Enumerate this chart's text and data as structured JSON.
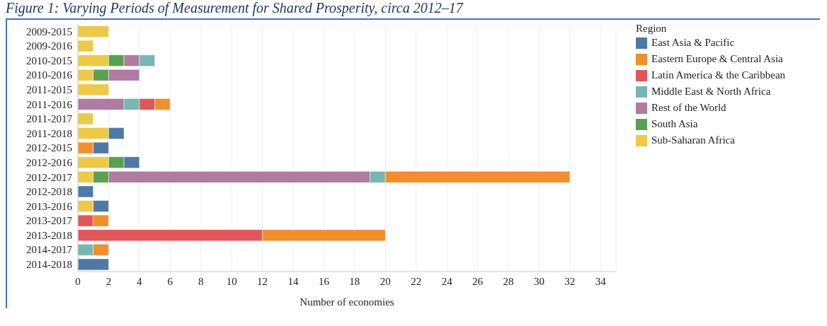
{
  "chart_data": {
    "type": "bar",
    "orientation": "horizontal",
    "stacked": true,
    "title": "Figure 1: Varying Periods of Measurement for Shared Prosperity, circa 2012–17",
    "xlabel": "Number of economies",
    "legend_title": "Region",
    "legend": "right",
    "grid": "x",
    "categories": [
      "2009-2015",
      "2009-2016",
      "2010-2015",
      "2010-2016",
      "2011-2015",
      "2011-2016",
      "2011-2017",
      "2011-2018",
      "2012-2015",
      "2012-2016",
      "2012-2017",
      "2012-2018",
      "2013-2016",
      "2013-2017",
      "2013-2018",
      "2014-2017",
      "2014-2018"
    ],
    "xlim": [
      0,
      35
    ],
    "xticks": [
      0,
      2,
      4,
      6,
      8,
      10,
      12,
      14,
      16,
      18,
      20,
      22,
      24,
      26,
      28,
      30,
      32,
      34
    ],
    "series": [
      {
        "name": "Sub-Saharan Africa",
        "color": "#edc948",
        "values": [
          2,
          1,
          2,
          1,
          2,
          null,
          1,
          2,
          null,
          2,
          1,
          null,
          1,
          null,
          null,
          null,
          null
        ]
      },
      {
        "name": "South Asia",
        "color": "#59a14f",
        "values": [
          null,
          null,
          1,
          1,
          null,
          null,
          null,
          null,
          null,
          1,
          1,
          null,
          null,
          null,
          null,
          null,
          null
        ]
      },
      {
        "name": "Rest of the World",
        "color": "#b07aa1",
        "values": [
          null,
          null,
          1,
          2,
          null,
          3,
          null,
          null,
          null,
          null,
          17,
          null,
          null,
          null,
          null,
          null,
          null
        ]
      },
      {
        "name": "Middle East & North Africa",
        "color": "#76b7b2",
        "values": [
          null,
          null,
          1,
          null,
          null,
          1,
          null,
          null,
          null,
          null,
          1,
          null,
          null,
          null,
          null,
          1,
          null
        ]
      },
      {
        "name": "Latin America & the Caribbean",
        "color": "#e15759",
        "values": [
          null,
          null,
          null,
          null,
          null,
          1,
          null,
          null,
          null,
          null,
          null,
          null,
          null,
          1,
          12,
          null,
          null
        ]
      },
      {
        "name": "Eastern Europe & Central Asia",
        "color": "#f28e2b",
        "values": [
          null,
          null,
          null,
          null,
          null,
          1,
          null,
          null,
          1,
          null,
          12,
          null,
          null,
          1,
          8,
          1,
          null
        ]
      },
      {
        "name": "East Asia & Pacific",
        "color": "#4e79a7",
        "values": [
          null,
          null,
          null,
          null,
          null,
          null,
          null,
          1,
          1,
          1,
          null,
          1,
          1,
          null,
          null,
          null,
          2
        ]
      }
    ]
  }
}
